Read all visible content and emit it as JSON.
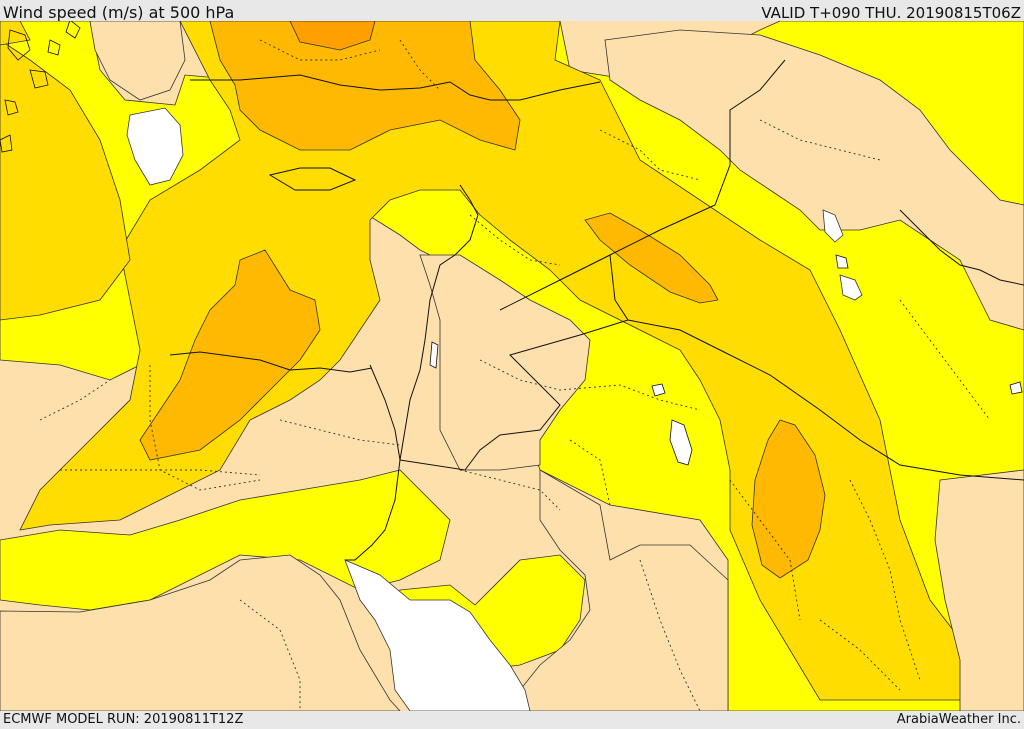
{
  "header": {
    "title": "Wind speed (m/s) at 500 hPa",
    "valid": "VALID T+090 THU. 20190815T06Z"
  },
  "footer": {
    "model_run": "ECMWF MODEL RUN: 20190811T12Z",
    "credit": "ArabiaWeather Inc."
  },
  "colors": {
    "light_band": "#fde0ab",
    "yellow_band": "#ffff00",
    "gold_band": "#ffdd00",
    "orange_band": "#ffb900",
    "dark_orange_band": "#ff9f00",
    "calm_band": "#ffffff",
    "contour": "#222222"
  }
}
